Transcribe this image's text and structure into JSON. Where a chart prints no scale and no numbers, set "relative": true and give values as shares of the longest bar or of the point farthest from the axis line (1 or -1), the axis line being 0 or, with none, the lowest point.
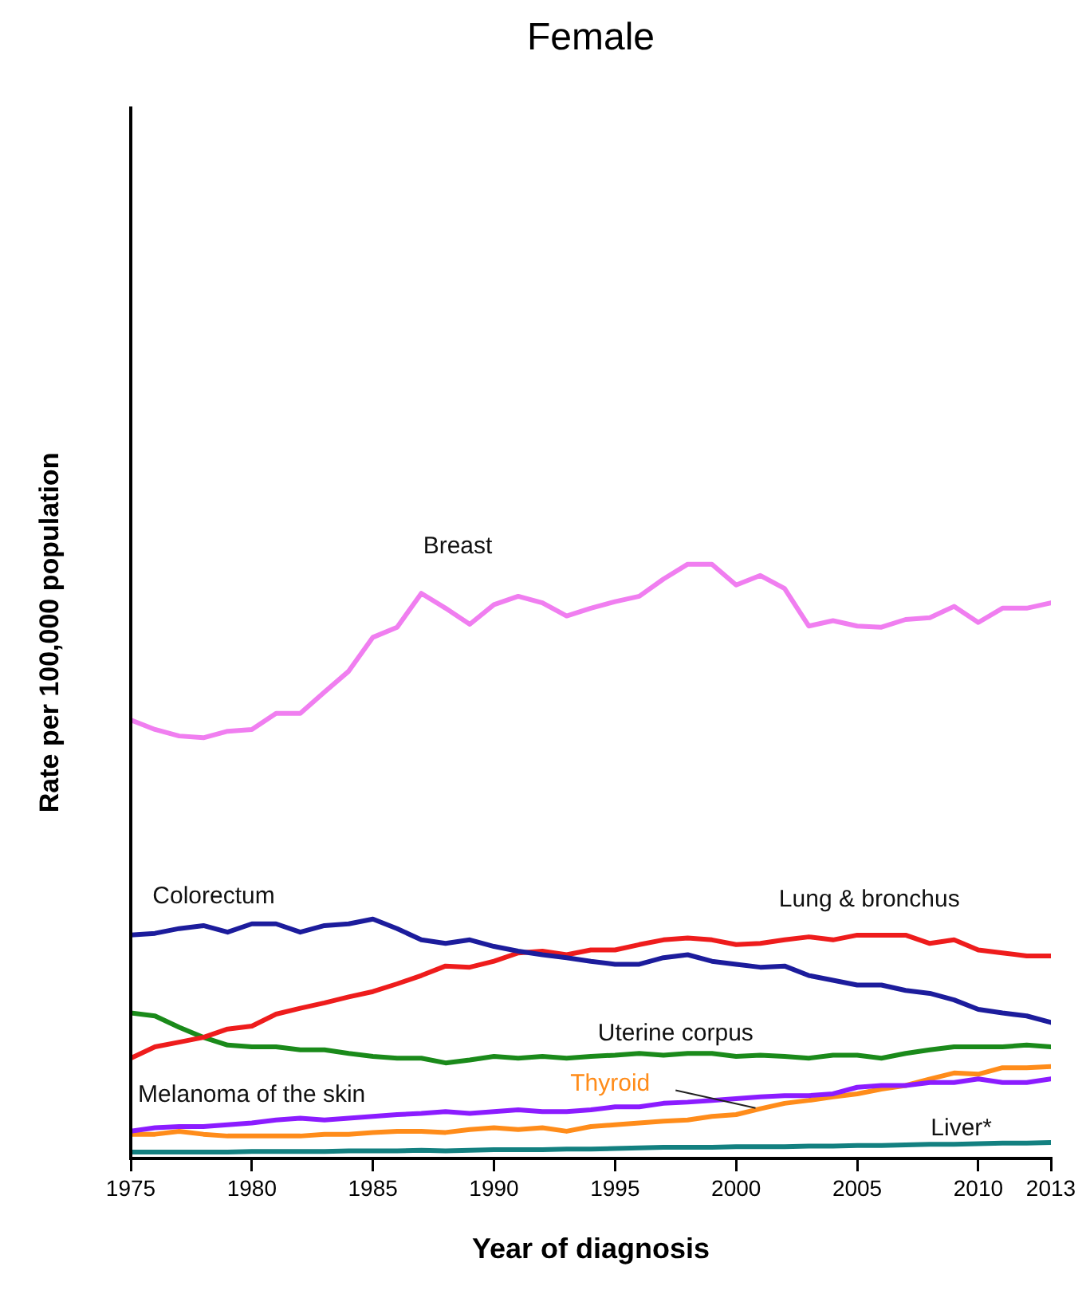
{
  "chart_data": {
    "type": "line",
    "title": "Female",
    "xlabel": "Year of diagnosis",
    "ylabel": "Rate per 100,000 population",
    "relative": true,
    "legend": false,
    "grid": false,
    "marker": "none",
    "x": [
      1975,
      1976,
      1977,
      1978,
      1979,
      1980,
      1981,
      1982,
      1983,
      1984,
      1985,
      1986,
      1987,
      1988,
      1989,
      1990,
      1991,
      1992,
      1993,
      1994,
      1995,
      1996,
      1997,
      1998,
      1999,
      2000,
      2001,
      2002,
      2003,
      2004,
      2005,
      2006,
      2007,
      2008,
      2009,
      2010,
      2011,
      2012,
      2013
    ],
    "xlim": [
      1975,
      2013
    ],
    "xticks": [
      1975,
      1980,
      1985,
      1990,
      1995,
      2000,
      2005,
      2010,
      2013
    ],
    "series": [
      {
        "name": "Breast",
        "color": "#f07ef0",
        "values": [
          0.738,
          0.722,
          0.711,
          0.708,
          0.719,
          0.722,
          0.749,
          0.749,
          0.785,
          0.82,
          0.877,
          0.894,
          0.951,
          0.926,
          0.899,
          0.932,
          0.946,
          0.935,
          0.913,
          0.926,
          0.937,
          0.946,
          0.975,
          1,
          1,
          0.965,
          0.981,
          0.959,
          0.896,
          0.905,
          0.896,
          0.894,
          0.907,
          0.91,
          0.929,
          0.902,
          0.926,
          0.926,
          0.935
        ]
      },
      {
        "name": "Colorectum",
        "color": "#1c1c9c",
        "values": [
          0.376,
          0.379,
          0.387,
          0.392,
          0.381,
          0.395,
          0.395,
          0.381,
          0.392,
          0.395,
          0.403,
          0.387,
          0.368,
          0.362,
          0.368,
          0.357,
          0.349,
          0.343,
          0.338,
          0.332,
          0.327,
          0.327,
          0.338,
          0.343,
          0.332,
          0.327,
          0.322,
          0.324,
          0.308,
          0.3,
          0.292,
          0.292,
          0.283,
          0.278,
          0.267,
          0.251,
          0.245,
          0.24,
          0.229
        ]
      },
      {
        "name": "Lung & bronchus",
        "color": "#ee1c1c",
        "values": [
          0.169,
          0.188,
          0.196,
          0.204,
          0.218,
          0.223,
          0.243,
          0.253,
          0.262,
          0.272,
          0.281,
          0.294,
          0.308,
          0.324,
          0.322,
          0.332,
          0.346,
          0.349,
          0.343,
          0.351,
          0.351,
          0.36,
          0.368,
          0.371,
          0.368,
          0.36,
          0.362,
          0.368,
          0.373,
          0.368,
          0.376,
          0.376,
          0.376,
          0.362,
          0.368,
          0.351,
          0.346,
          0.341,
          0.341
        ]
      },
      {
        "name": "Uterine corpus",
        "color": "#1a8a1a",
        "values": [
          0.245,
          0.24,
          0.221,
          0.204,
          0.191,
          0.188,
          0.188,
          0.183,
          0.183,
          0.177,
          0.172,
          0.169,
          0.169,
          0.161,
          0.166,
          0.172,
          0.169,
          0.172,
          0.169,
          0.172,
          0.174,
          0.177,
          0.174,
          0.177,
          0.177,
          0.172,
          0.174,
          0.172,
          0.169,
          0.174,
          0.174,
          0.169,
          0.177,
          0.183,
          0.188,
          0.188,
          0.188,
          0.191,
          0.188
        ]
      },
      {
        "name": "Melanoma of the skin",
        "color": "#8b1cff",
        "values": [
          0.046,
          0.052,
          0.054,
          0.054,
          0.057,
          0.06,
          0.065,
          0.068,
          0.065,
          0.068,
          0.071,
          0.074,
          0.076,
          0.079,
          0.076,
          0.079,
          0.082,
          0.079,
          0.079,
          0.082,
          0.087,
          0.087,
          0.093,
          0.095,
          0.098,
          0.101,
          0.104,
          0.106,
          0.106,
          0.109,
          0.12,
          0.123,
          0.123,
          0.128,
          0.128,
          0.134,
          0.128,
          0.128,
          0.134
        ]
      },
      {
        "name": "Thyroid",
        "color": "#ff8c1a",
        "values": [
          0.041,
          0.041,
          0.046,
          0.041,
          0.038,
          0.038,
          0.038,
          0.038,
          0.041,
          0.041,
          0.044,
          0.046,
          0.046,
          0.044,
          0.049,
          0.052,
          0.049,
          0.052,
          0.046,
          0.054,
          0.057,
          0.06,
          0.063,
          0.065,
          0.071,
          0.074,
          0.084,
          0.093,
          0.098,
          0.104,
          0.109,
          0.117,
          0.123,
          0.134,
          0.144,
          0.142,
          0.153,
          0.153,
          0.155
        ]
      },
      {
        "name": "Liver*",
        "color": "#138080",
        "values": [
          0.011,
          0.011,
          0.011,
          0.011,
          0.011,
          0.012,
          0.012,
          0.012,
          0.012,
          0.013,
          0.013,
          0.013,
          0.014,
          0.013,
          0.014,
          0.015,
          0.015,
          0.015,
          0.016,
          0.016,
          0.017,
          0.018,
          0.019,
          0.019,
          0.019,
          0.02,
          0.02,
          0.02,
          0.021,
          0.021,
          0.022,
          0.022,
          0.023,
          0.024,
          0.024,
          0.025,
          0.026,
          0.026,
          0.027
        ]
      }
    ]
  }
}
